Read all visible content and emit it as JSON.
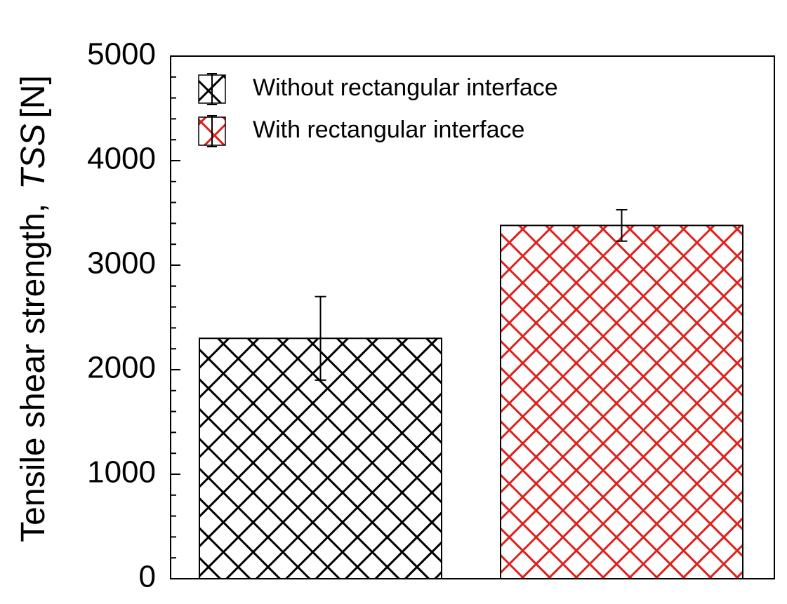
{
  "chart_data": {
    "type": "bar",
    "y_label": "Tensile shear strength,",
    "y_label_symbol": "TSS",
    "y_label_unit": "[N]",
    "categories": [
      null
    ],
    "series": [
      {
        "name": "Without rectangular interface",
        "color": "#000000",
        "values": [
          2300
        ],
        "errors": [
          400
        ]
      },
      {
        "name": "With rectangular interface",
        "color": "#e0201b",
        "values": [
          3380
        ],
        "errors": [
          150
        ]
      }
    ],
    "ylim": [
      0,
      5000
    ],
    "yticks": [
      0,
      1000,
      2000,
      3000,
      4000,
      5000
    ],
    "yminorticks": [
      200,
      400,
      600,
      800,
      1200,
      1400,
      1600,
      1800,
      2200,
      2400,
      2600,
      2800,
      3200,
      3400,
      3600,
      3800,
      4200,
      4400,
      4600,
      4800
    ],
    "legend": "upper-left"
  }
}
